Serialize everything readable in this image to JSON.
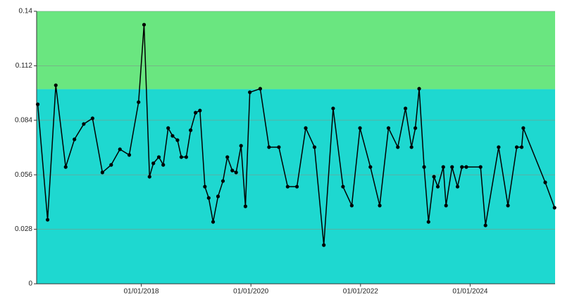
{
  "chart_data": {
    "type": "line",
    "x": [
      2016.11,
      2016.29,
      2016.44,
      2016.62,
      2016.78,
      2016.95,
      2017.11,
      2017.29,
      2017.45,
      2017.61,
      2017.78,
      2017.95,
      2018.05,
      2018.15,
      2018.22,
      2018.32,
      2018.4,
      2018.49,
      2018.57,
      2018.66,
      2018.73,
      2018.82,
      2018.9,
      2018.99,
      2019.07,
      2019.16,
      2019.23,
      2019.31,
      2019.4,
      2019.49,
      2019.57,
      2019.66,
      2019.73,
      2019.82,
      2019.9,
      2019.98,
      2020.17,
      2020.33,
      2020.51,
      2020.67,
      2020.84,
      2021.0,
      2021.16,
      2021.33,
      2021.5,
      2021.68,
      2021.84,
      2021.99,
      2022.18,
      2022.35,
      2022.51,
      2022.68,
      2022.82,
      2022.93,
      2023.0,
      2023.07,
      2023.16,
      2023.24,
      2023.34,
      2023.41,
      2023.51,
      2023.56,
      2023.67,
      2023.77,
      2023.85,
      2023.93,
      2024.19,
      2024.28,
      2024.52,
      2024.69,
      2024.85,
      2024.94,
      2024.97,
      2025.37,
      2025.54
    ],
    "values": [
      0.0922,
      0.0329,
      0.102,
      0.06,
      0.0742,
      0.0821,
      0.085,
      0.0572,
      0.0611,
      0.0691,
      0.0662,
      0.0933,
      0.1331,
      0.055,
      0.0619,
      0.0651,
      0.0611,
      0.08,
      0.076,
      0.0738,
      0.0651,
      0.0651,
      0.0789,
      0.0879,
      0.089,
      0.0499,
      0.0441,
      0.0318,
      0.0449,
      0.0528,
      0.0651,
      0.0582,
      0.0572,
      0.0709,
      0.0398,
      0.0984,
      0.1002,
      0.0702,
      0.0702,
      0.0499,
      0.0499,
      0.08,
      0.0702,
      0.0199,
      0.0901,
      0.0499,
      0.0402,
      0.08,
      0.06,
      0.0402,
      0.08,
      0.0702,
      0.0901,
      0.0702,
      0.08,
      0.1002,
      0.06,
      0.0318,
      0.055,
      0.0499,
      0.06,
      0.0402,
      0.06,
      0.0499,
      0.06,
      0.06,
      0.06,
      0.03,
      0.0702,
      0.0402,
      0.0702,
      0.0702,
      0.08,
      0.0521,
      0.0391
    ],
    "color": "#000000",
    "xlim": [
      2016.09,
      2025.55
    ],
    "xticks": [
      {
        "value": 2018,
        "label": "01/01/2018"
      },
      {
        "value": 2020,
        "label": "01/01/2020"
      },
      {
        "value": 2022,
        "label": "01/01/2022"
      },
      {
        "value": 2024,
        "label": "01/01/2024"
      }
    ],
    "ylim": [
      0,
      0.14
    ],
    "yticks": [
      0,
      0.028,
      0.056,
      0.084,
      0.112,
      0.14
    ],
    "grid": true,
    "bands": [
      {
        "from": 0,
        "to": 0.1,
        "color": "#1ed8d0"
      },
      {
        "from": 0.1,
        "to": 0.14,
        "color": "#6ae680"
      }
    ]
  }
}
